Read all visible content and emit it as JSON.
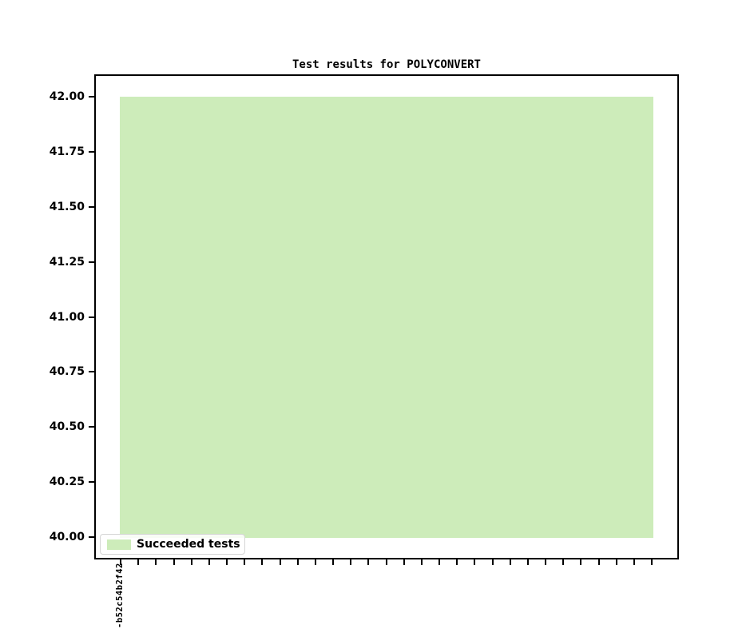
{
  "title": "Test results for POLYCONVERT",
  "chart_data": {
    "type": "bar",
    "title": "Test results for POLYCONVERT",
    "categories": [
      "-b52c54b2f42"
    ],
    "series": [
      {
        "name": "Succeeded tests",
        "values": [
          42
        ],
        "color": "#cdecba"
      }
    ],
    "bar_base": 40,
    "xlabel": "",
    "ylabel": "",
    "ylim": [
      39.9,
      42.1
    ],
    "ytick_labels": [
      "42.00",
      "41.75",
      "41.50",
      "41.25",
      "41.00",
      "40.75",
      "40.50",
      "40.25",
      "40.00"
    ],
    "x_tick_count": 31,
    "grid": false,
    "legend_position": "lower left"
  },
  "colors": {
    "bar_fill": "#cdecba",
    "axis": "#000000",
    "text": "#000000",
    "legend_border": "#d5d5d5",
    "background": "#ffffff"
  },
  "legend": {
    "entries": [
      {
        "label": "Succeeded tests",
        "swatch_color": "#cdecba"
      }
    ]
  }
}
